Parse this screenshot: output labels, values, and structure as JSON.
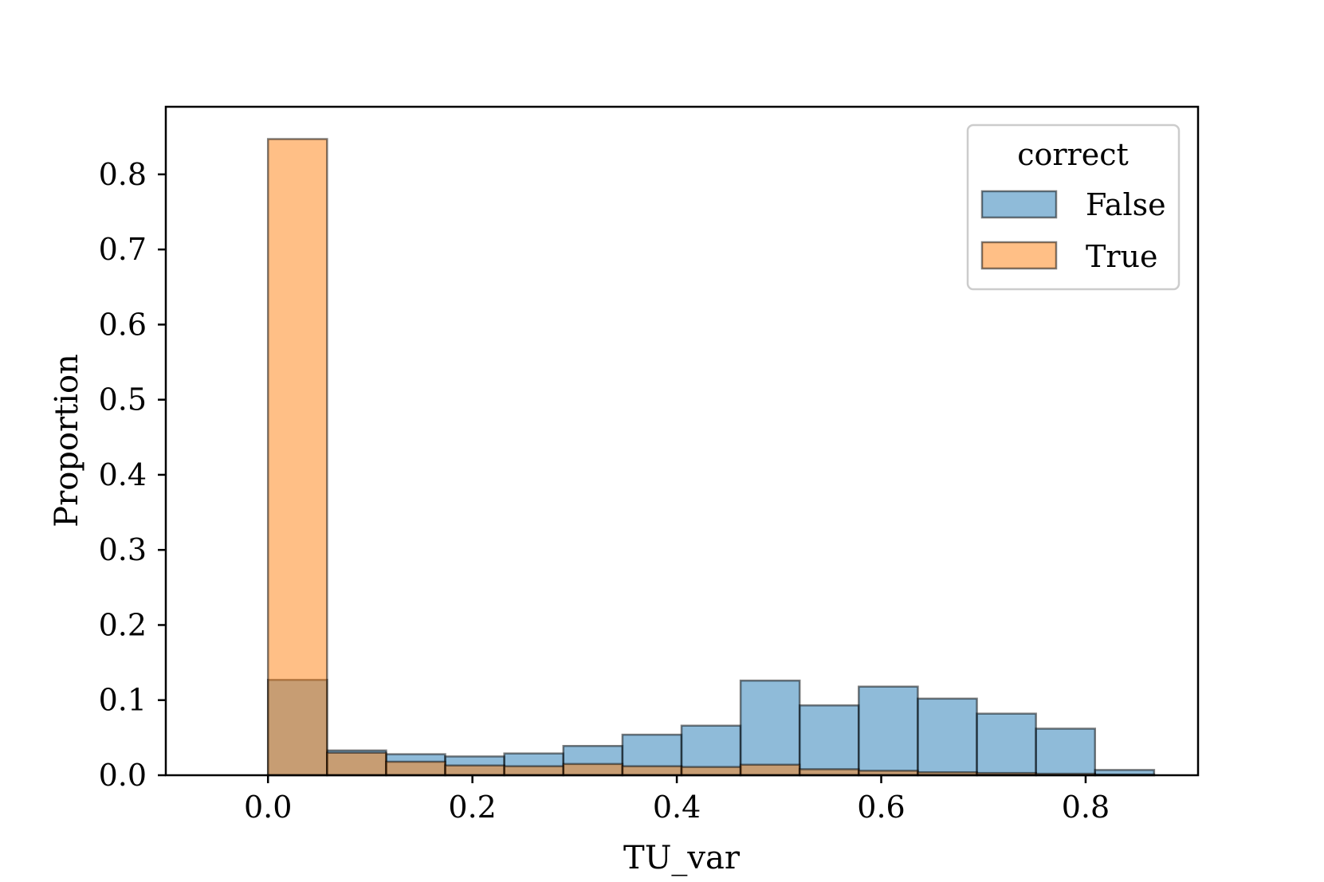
{
  "chart_data": {
    "type": "histogram",
    "xlabel": "TU_var",
    "ylabel": "Proportion",
    "xlim": [
      -0.1,
      0.91
    ],
    "ylim": [
      0.0,
      0.89
    ],
    "xticks": [
      "0.0",
      "0.2",
      "0.4",
      "0.6",
      "0.8"
    ],
    "yticks": [
      "0.0",
      "0.1",
      "0.2",
      "0.3",
      "0.4",
      "0.5",
      "0.6",
      "0.7",
      "0.8"
    ],
    "bin_width": 0.0578,
    "bin_starts": [
      0.0,
      0.0578,
      0.1156,
      0.1734,
      0.2312,
      0.289,
      0.3468,
      0.4046,
      0.4624,
      0.5202,
      0.578,
      0.6358,
      0.6936,
      0.7514,
      0.8092
    ],
    "legend": {
      "title": "correct",
      "position": "top-right"
    },
    "series": [
      {
        "name": "False",
        "color": "#1f77b4",
        "values": [
          0.127,
          0.033,
          0.028,
          0.025,
          0.029,
          0.039,
          0.054,
          0.066,
          0.126,
          0.093,
          0.118,
          0.102,
          0.082,
          0.062,
          0.007
        ]
      },
      {
        "name": "True",
        "color": "#ff7f0e",
        "values": [
          0.847,
          0.03,
          0.018,
          0.013,
          0.012,
          0.015,
          0.012,
          0.011,
          0.014,
          0.008,
          0.006,
          0.004,
          0.003,
          0.002,
          0.001
        ]
      }
    ],
    "grid": false
  }
}
